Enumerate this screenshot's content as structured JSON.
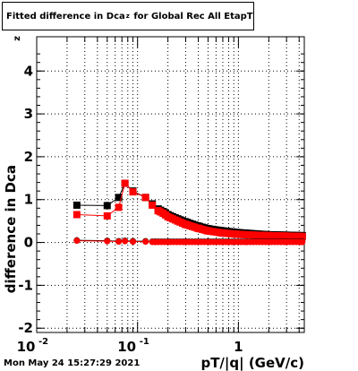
{
  "title_prefix": "Fitted difference in Dca",
  "title_sub": "z",
  "title_suffix": "for Global Rec All EtapT",
  "timestamp": "Mon May 24 15:27:29 2021",
  "chart_data": {
    "type": "scatter",
    "title": "Fitted difference in Dca_z for Global Rec All EtapT",
    "xlabel": "pT/|q| (GeV/c)",
    "ylabel": "difference in Dca_z",
    "xscale": "log",
    "xlim": [
      0.01,
      4.5
    ],
    "ylim": [
      -2.1,
      4.8
    ],
    "x_ticks": [
      {
        "value": 0.01,
        "label": "10^-2"
      },
      {
        "value": 0.1,
        "label": "10^-1"
      },
      {
        "value": 1,
        "label": "1"
      }
    ],
    "y_ticks": [
      -2,
      -1,
      0,
      1,
      2,
      3,
      4
    ],
    "grid": true,
    "colors": {
      "black_series": "#000000",
      "red_series": "#ff0000"
    },
    "series": [
      {
        "marker": "square",
        "color": "#000000",
        "x": [
          0.025,
          0.05,
          0.065,
          0.075,
          0.09,
          0.12,
          0.14,
          0.16,
          0.18,
          0.2,
          0.25,
          0.3,
          0.4,
          0.5,
          0.7,
          1.0,
          1.5,
          2.0,
          3.0,
          4.2
        ],
        "y": [
          0.87,
          0.86,
          1.05,
          1.38,
          1.2,
          1.05,
          0.9,
          0.78,
          0.72,
          0.65,
          0.55,
          0.48,
          0.38,
          0.32,
          0.27,
          0.23,
          0.2,
          0.18,
          0.17,
          0.16
        ]
      },
      {
        "marker": "square",
        "color": "#ff0000",
        "x": [
          0.025,
          0.05,
          0.065,
          0.075,
          0.09,
          0.12,
          0.14,
          0.16,
          0.18,
          0.2,
          0.25,
          0.3,
          0.4,
          0.5,
          0.7,
          1.0,
          1.5,
          2.0,
          3.0,
          4.2
        ],
        "y": [
          0.65,
          0.62,
          0.82,
          1.38,
          1.18,
          1.05,
          0.87,
          0.74,
          0.68,
          0.6,
          0.5,
          0.42,
          0.33,
          0.27,
          0.22,
          0.19,
          0.17,
          0.16,
          0.15,
          0.14
        ]
      },
      {
        "marker": "circle",
        "color": "#000000",
        "x": [
          0.025,
          0.05,
          0.065,
          0.075,
          0.09,
          0.12,
          0.15,
          0.2,
          0.3,
          0.5,
          0.8,
          1.2,
          2.0,
          3.0,
          4.2
        ],
        "y": [
          0.05,
          0.04,
          0.03,
          0.04,
          0.03,
          0.03,
          0.02,
          0.02,
          0.02,
          0.02,
          0.02,
          0.02,
          0.02,
          0.02,
          0.02
        ]
      },
      {
        "marker": "circle",
        "color": "#ff0000",
        "x": [
          0.025,
          0.05,
          0.065,
          0.075,
          0.09,
          0.12,
          0.15,
          0.2,
          0.3,
          0.5,
          0.8,
          1.2,
          2.0,
          3.0,
          4.2
        ],
        "y": [
          0.04,
          0.03,
          0.02,
          0.03,
          0.02,
          0.02,
          0.01,
          0.01,
          0.01,
          0.01,
          0.01,
          0.01,
          0.01,
          0.01,
          0.01
        ]
      }
    ]
  }
}
